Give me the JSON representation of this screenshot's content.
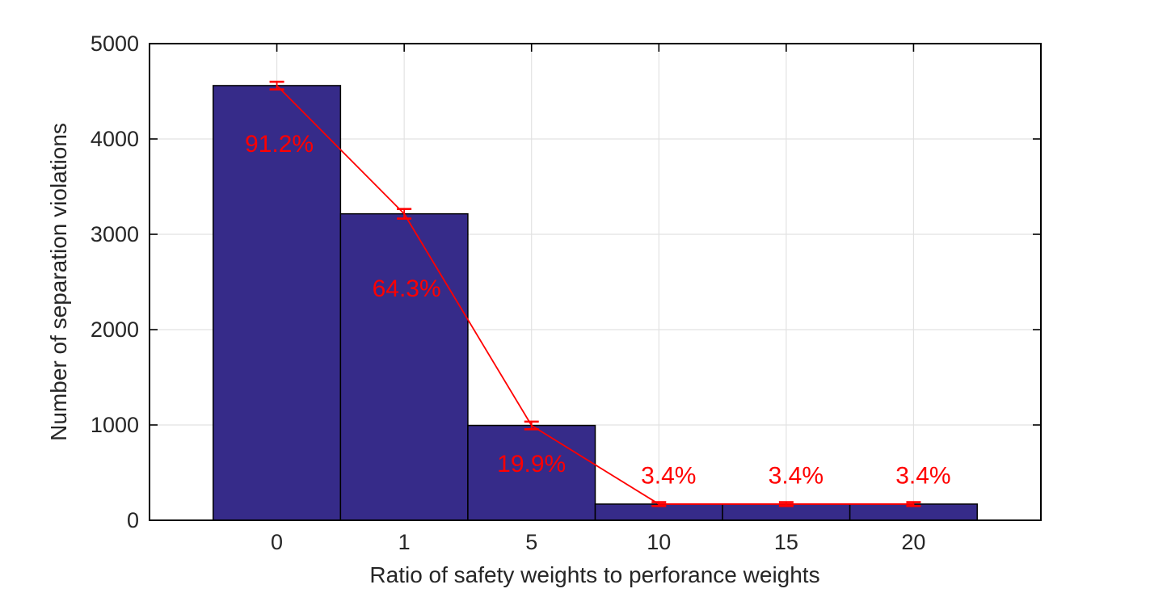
{
  "figure": {
    "xlabel": "Ratio of safety weights to perforance weights",
    "ylabel": "Number of separation violations"
  },
  "chart_data": {
    "type": "bar",
    "title": "",
    "xlabel": "Ratio of safety weights to perforance weights",
    "ylabel": "Number of separation violations",
    "categories": [
      "0",
      "1",
      "5",
      "10",
      "15",
      "20"
    ],
    "values": [
      4560,
      3215,
      995,
      170,
      170,
      170
    ],
    "error_bars": [
      40,
      50,
      40,
      20,
      20,
      20
    ],
    "point_labels": [
      "91.2%",
      "64.3%",
      "19.9%",
      "3.4%",
      "3.4%",
      "3.4%"
    ],
    "point_label_y": [
      3945,
      2430,
      590,
      465,
      465,
      465
    ],
    "ylim": [
      0,
      5000
    ],
    "ytick_values": [
      0,
      1000,
      2000,
      3000,
      4000,
      5000
    ],
    "ytick_labels": [
      "0",
      "1000",
      "2000",
      "3000",
      "4000",
      "5000"
    ],
    "grid": true,
    "legend": null,
    "overlay_line": true,
    "colors": {
      "bar_fill": "#362b89",
      "bar_edge": "#000000",
      "line": "#ff0000",
      "point_label": "#ff0000",
      "grid": "#e2e2e2",
      "axis_box": "#000000",
      "tick_label": "#262626"
    }
  }
}
